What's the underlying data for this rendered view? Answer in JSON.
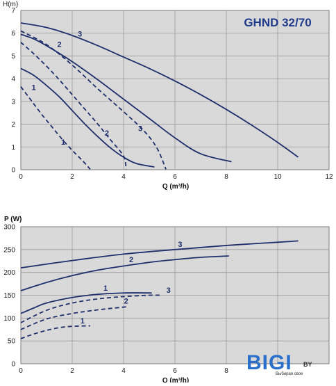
{
  "colors": {
    "curve": "#1f2f6b",
    "plot_bg": "#d9d9d9",
    "grid": "#9a9a9a",
    "title": "#1f3a8a",
    "logo_blue": "#2a6fc9",
    "logo_text": "#2a2a2a"
  },
  "chart_data": [
    {
      "type": "line",
      "title": "GHND 32/70",
      "ylabel": "H(m)",
      "xlabel": "Q (m³/h)",
      "xlim": [
        0,
        12
      ],
      "ylim": [
        0,
        7
      ],
      "xticks": [
        "0",
        "2",
        "4",
        "6",
        "8",
        "10",
        "12"
      ],
      "yticks": [
        "0",
        "1",
        "2",
        "3",
        "4",
        "5",
        "6",
        "7"
      ],
      "grid": true,
      "series": [
        {
          "name": "1",
          "style": "solid",
          "points": [
            [
              0,
              4.45
            ],
            [
              0.5,
              4.15
            ],
            [
              1,
              3.7
            ],
            [
              1.5,
              3.2
            ],
            [
              2,
              2.6
            ],
            [
              2.5,
              2.0
            ],
            [
              3,
              1.45
            ],
            [
              3.5,
              0.95
            ],
            [
              4,
              0.55
            ],
            [
              4.5,
              0.27
            ],
            [
              5.2,
              0.12
            ]
          ],
          "label_at": [
            0.5,
            3.5
          ]
        },
        {
          "name": "2",
          "style": "solid",
          "points": [
            [
              0,
              5.95
            ],
            [
              0.5,
              5.75
            ],
            [
              1,
              5.45
            ],
            [
              2,
              4.75
            ],
            [
              3,
              3.95
            ],
            [
              4,
              3.1
            ],
            [
              5,
              2.25
            ],
            [
              6,
              1.4
            ],
            [
              7,
              0.7
            ],
            [
              8.2,
              0.35
            ]
          ],
          "label_at": [
            1.5,
            5.4
          ]
        },
        {
          "name": "3",
          "style": "solid",
          "points": [
            [
              0,
              6.45
            ],
            [
              1,
              6.25
            ],
            [
              2,
              5.9
            ],
            [
              3,
              5.45
            ],
            [
              4,
              4.95
            ],
            [
              5,
              4.45
            ],
            [
              6,
              3.9
            ],
            [
              7,
              3.3
            ],
            [
              8,
              2.65
            ],
            [
              9,
              1.95
            ],
            [
              10,
              1.2
            ],
            [
              10.8,
              0.55
            ]
          ],
          "label_at": [
            2.3,
            5.85
          ]
        },
        {
          "name": "1",
          "style": "dashed",
          "points": [
            [
              0,
              3.65
            ],
            [
              0.4,
              3.05
            ],
            [
              0.8,
              2.45
            ],
            [
              1.2,
              1.9
            ],
            [
              1.6,
              1.35
            ],
            [
              2,
              0.85
            ],
            [
              2.4,
              0.4
            ],
            [
              2.7,
              0.02
            ]
          ],
          "label_at": [
            1.65,
            1.1
          ]
        },
        {
          "name": "2",
          "style": "dashed",
          "points": [
            [
              0,
              5.6
            ],
            [
              0.5,
              5.1
            ],
            [
              1,
              4.55
            ],
            [
              1.5,
              3.95
            ],
            [
              2,
              3.3
            ],
            [
              2.5,
              2.65
            ],
            [
              3,
              2.0
            ],
            [
              3.5,
              1.3
            ],
            [
              4,
              0.6
            ],
            [
              4.1,
              0.02
            ]
          ],
          "label_at": [
            3.35,
            1.5
          ]
        },
        {
          "name": "3",
          "style": "dashed",
          "points": [
            [
              0,
              6.1
            ],
            [
              1,
              5.5
            ],
            [
              2,
              4.6
            ],
            [
              3,
              3.55
            ],
            [
              4,
              2.55
            ],
            [
              4.8,
              1.7
            ],
            [
              5.3,
              0.95
            ],
            [
              5.65,
              0.02
            ]
          ],
          "label_at": [
            4.65,
            1.7
          ]
        }
      ]
    },
    {
      "type": "line",
      "title": "",
      "ylabel": "P (W)",
      "xlabel": "Q (m³/h)",
      "xlim": [
        0,
        12
      ],
      "ylim": [
        0,
        300
      ],
      "xticks": [
        "0",
        "2",
        "4",
        "6",
        "8"
      ],
      "yticks": [
        "0",
        "50",
        "100",
        "150",
        "200",
        "250",
        "300"
      ],
      "grid": true,
      "series": [
        {
          "name": "1",
          "style": "solid",
          "points": [
            [
              0,
              110
            ],
            [
              0.5,
              122
            ],
            [
              1,
              133
            ],
            [
              2,
              145
            ],
            [
              3,
              152
            ],
            [
              4,
              155
            ],
            [
              5.1,
              155
            ]
          ],
          "label_at": [
            3.3,
            160
          ]
        },
        {
          "name": "2",
          "style": "solid",
          "points": [
            [
              0,
              160
            ],
            [
              1,
              178
            ],
            [
              2,
              193
            ],
            [
              3,
              205
            ],
            [
              4,
              214
            ],
            [
              5,
              222
            ],
            [
              6,
              228
            ],
            [
              7,
              233
            ],
            [
              8.1,
              236
            ]
          ],
          "label_at": [
            4.3,
            222
          ]
        },
        {
          "name": "3",
          "style": "solid",
          "points": [
            [
              0,
              210
            ],
            [
              2,
              226
            ],
            [
              4,
              240
            ],
            [
              6,
              250
            ],
            [
              8,
              259
            ],
            [
              10,
              266
            ],
            [
              10.8,
              269
            ]
          ],
          "label_at": [
            6.2,
            256
          ]
        },
        {
          "name": "1",
          "style": "dashed",
          "points": [
            [
              0,
              55
            ],
            [
              0.5,
              65
            ],
            [
              1,
              73
            ],
            [
              1.5,
              79
            ],
            [
              2,
              82
            ],
            [
              2.7,
              83
            ]
          ],
          "label_at": [
            2.4,
            88
          ]
        },
        {
          "name": "2",
          "style": "dashed",
          "points": [
            [
              0,
              75
            ],
            [
              1,
              98
            ],
            [
              2,
              110
            ],
            [
              3,
              118
            ],
            [
              4,
              124
            ],
            [
              4.1,
              124
            ]
          ],
          "label_at": [
            4.1,
            132
          ]
        },
        {
          "name": "3",
          "style": "dashed",
          "points": [
            [
              0,
              90
            ],
            [
              1,
              117
            ],
            [
              2,
              133
            ],
            [
              3,
              142
            ],
            [
              4,
              147
            ],
            [
              5,
              150
            ],
            [
              5.5,
              150
            ]
          ],
          "label_at": [
            5.75,
            155
          ]
        }
      ]
    }
  ],
  "watermark": {
    "text": "BIGI",
    "suffix": "BY",
    "tagline": "Выбирая свое"
  }
}
